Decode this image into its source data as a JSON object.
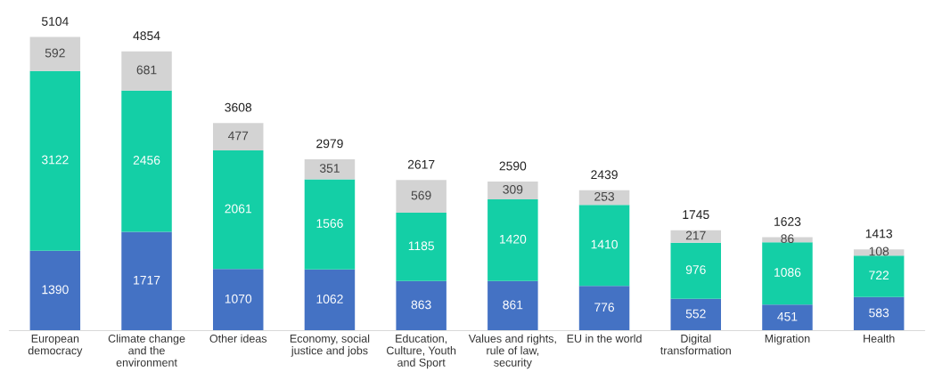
{
  "chart_data": {
    "type": "bar",
    "stacked": true,
    "data_labels": true,
    "categories": [
      "European\ndemocracy",
      "Climate change\nand the\nenvironment",
      "Other ideas",
      "Economy, social\njustice and jobs",
      "Education,\nCulture, Youth\nand Sport",
      "Values and rights,\nrule of law,\nsecurity",
      "EU in the world",
      "Digital\ntransformation",
      "Migration",
      "Health"
    ],
    "series": [
      {
        "color": "#4472c4",
        "values": [
          1390,
          1717,
          1070,
          1062,
          863,
          861,
          776,
          552,
          451,
          583
        ]
      },
      {
        "color": "#14cfa6",
        "values": [
          3122,
          2456,
          2061,
          1566,
          1185,
          1420,
          1410,
          976,
          1086,
          722
        ]
      },
      {
        "color": "#d3d3d3",
        "values": [
          592,
          681,
          477,
          351,
          569,
          309,
          253,
          217,
          86,
          108
        ]
      }
    ],
    "totals": [
      "5104",
      "4854",
      "3608",
      "2979",
      "2617",
      "2590",
      "2439",
      "1745",
      "1623",
      "1413"
    ],
    "grid": false,
    "legend": false
  }
}
